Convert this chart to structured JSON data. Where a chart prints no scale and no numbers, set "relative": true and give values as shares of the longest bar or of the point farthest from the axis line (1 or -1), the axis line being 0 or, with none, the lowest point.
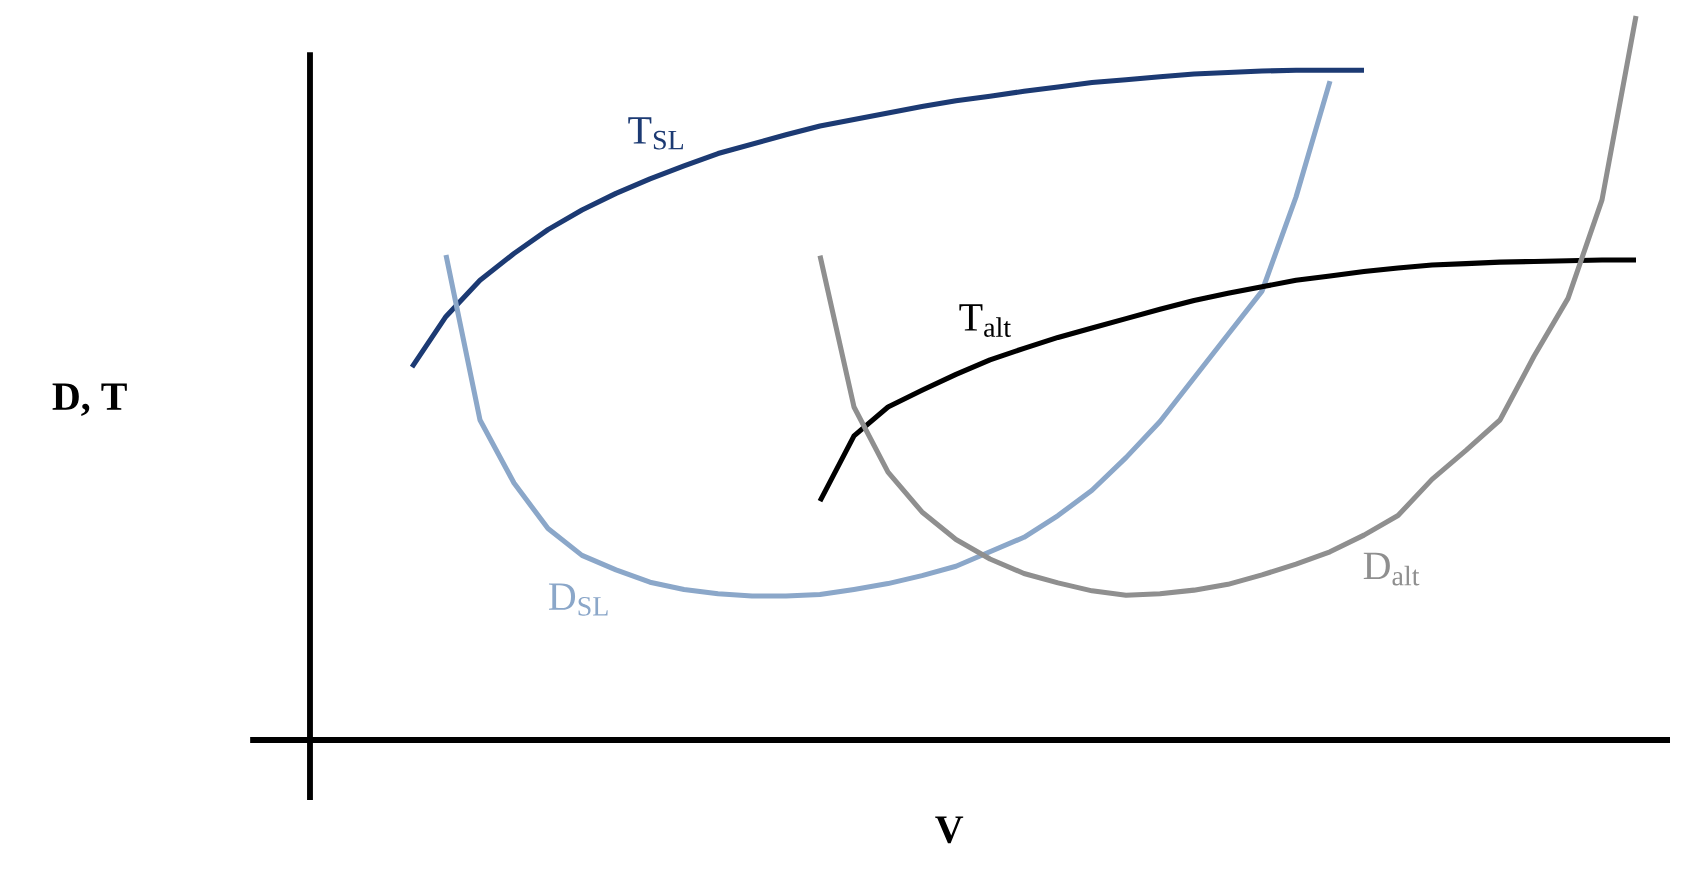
{
  "chart_data": {
    "type": "line",
    "relative": true,
    "xlabel": "V",
    "ylabel": "D, T",
    "categories": [
      null,
      null,
      null,
      null,
      null,
      null,
      null,
      null,
      null,
      null,
      null,
      null,
      null,
      null,
      null,
      null,
      null,
      null,
      null,
      null,
      null,
      null,
      null,
      null,
      null,
      null,
      null,
      null,
      null,
      null,
      null,
      null,
      null,
      null,
      null,
      null,
      null,
      null,
      null,
      null,
      null
    ],
    "series": [
      {
        "name": "T$_{SL}$",
        "color": "#1c3a73",
        "values": [
          null,
          null,
          null,
          0.515,
          0.585,
          0.635,
          0.672,
          0.705,
          0.732,
          0.755,
          0.775,
          0.793,
          0.81,
          0.823,
          0.836,
          0.848,
          0.857,
          0.866,
          0.875,
          0.883,
          0.889,
          0.896,
          0.902,
          0.908,
          0.912,
          0.916,
          0.92,
          0.922,
          0.924,
          0.925,
          0.925,
          0.925,
          null,
          null,
          null,
          null,
          null,
          null,
          null,
          null,
          null
        ]
      },
      {
        "name": "D$_{SL}$",
        "color": "#8ba7c9",
        "values": [
          null,
          null,
          null,
          null,
          0.67,
          0.442,
          0.355,
          0.292,
          0.255,
          0.235,
          0.218,
          0.208,
          0.202,
          0.199,
          0.199,
          0.201,
          0.208,
          0.216,
          0.227,
          0.24,
          0.26,
          0.28,
          0.31,
          0.345,
          0.39,
          0.44,
          0.5,
          0.56,
          0.62,
          0.75,
          0.91,
          null,
          null,
          null,
          null,
          null,
          null,
          null,
          null,
          null,
          null
        ]
      },
      {
        "name": "T$_{alt}$",
        "color": "#000000",
        "values": [
          null,
          null,
          null,
          null,
          null,
          null,
          null,
          null,
          null,
          null,
          null,
          null,
          null,
          null,
          null,
          0.33,
          0.42,
          0.46,
          0.483,
          0.505,
          0.525,
          0.541,
          0.556,
          0.569,
          0.582,
          0.595,
          0.607,
          0.617,
          0.626,
          0.635,
          0.641,
          0.647,
          0.652,
          0.656,
          0.658,
          0.66,
          0.661,
          0.662,
          0.663,
          0.663,
          null
        ]
      },
      {
        "name": "D$_{alt}$",
        "color": "#8f8f8f",
        "values": [
          null,
          null,
          null,
          null,
          null,
          null,
          null,
          null,
          null,
          null,
          null,
          null,
          null,
          null,
          null,
          0.669,
          0.46,
          0.37,
          0.315,
          0.277,
          0.25,
          0.23,
          0.217,
          0.206,
          0.2,
          0.202,
          0.207,
          0.215,
          0.228,
          0.243,
          0.26,
          0.283,
          0.31,
          0.36,
          0.4,
          0.442,
          0.53,
          0.61,
          0.746,
          1.0,
          null
        ]
      }
    ]
  }
}
